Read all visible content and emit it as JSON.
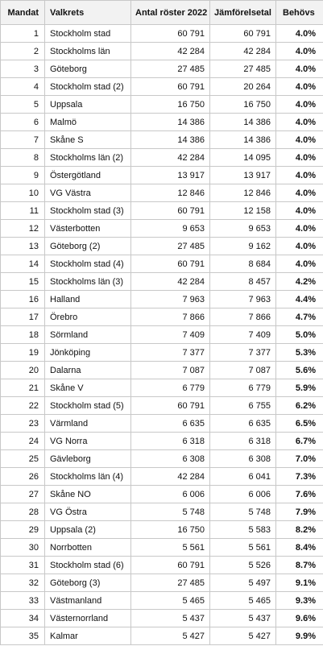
{
  "table": {
    "headers": [
      "Mandat",
      "Valkrets",
      "Antal röster 2022",
      "Jämförelsetal",
      "Behövs"
    ],
    "rows": [
      [
        "1",
        "Stockholm stad",
        "60 791",
        "60 791",
        "4.0%"
      ],
      [
        "2",
        "Stockholms län",
        "42 284",
        "42 284",
        "4.0%"
      ],
      [
        "3",
        "Göteborg",
        "27 485",
        "27 485",
        "4.0%"
      ],
      [
        "4",
        "Stockholm stad (2)",
        "60 791",
        "20 264",
        "4.0%"
      ],
      [
        "5",
        "Uppsala",
        "16 750",
        "16 750",
        "4.0%"
      ],
      [
        "6",
        "Malmö",
        "14 386",
        "14 386",
        "4.0%"
      ],
      [
        "7",
        "Skåne S",
        "14 386",
        "14 386",
        "4.0%"
      ],
      [
        "8",
        "Stockholms län (2)",
        "42 284",
        "14 095",
        "4.0%"
      ],
      [
        "9",
        "Östergötland",
        "13 917",
        "13 917",
        "4.0%"
      ],
      [
        "10",
        "VG Västra",
        "12 846",
        "12 846",
        "4.0%"
      ],
      [
        "11",
        "Stockholm stad (3)",
        "60 791",
        "12 158",
        "4.0%"
      ],
      [
        "12",
        "Västerbotten",
        "9 653",
        "9 653",
        "4.0%"
      ],
      [
        "13",
        "Göteborg (2)",
        "27 485",
        "9 162",
        "4.0%"
      ],
      [
        "14",
        "Stockholm stad (4)",
        "60 791",
        "8 684",
        "4.0%"
      ],
      [
        "15",
        "Stockholms län (3)",
        "42 284",
        "8 457",
        "4.2%"
      ],
      [
        "16",
        "Halland",
        "7 963",
        "7 963",
        "4.4%"
      ],
      [
        "17",
        "Örebro",
        "7 866",
        "7 866",
        "4.7%"
      ],
      [
        "18",
        "Sörmland",
        "7 409",
        "7 409",
        "5.0%"
      ],
      [
        "19",
        "Jönköping",
        "7 377",
        "7 377",
        "5.3%"
      ],
      [
        "20",
        "Dalarna",
        "7 087",
        "7 087",
        "5.6%"
      ],
      [
        "21",
        "Skåne V",
        "6 779",
        "6 779",
        "5.9%"
      ],
      [
        "22",
        "Stockholm stad (5)",
        "60 791",
        "6 755",
        "6.2%"
      ],
      [
        "23",
        "Värmland",
        "6 635",
        "6 635",
        "6.5%"
      ],
      [
        "24",
        "VG Norra",
        "6 318",
        "6 318",
        "6.7%"
      ],
      [
        "25",
        "Gävleborg",
        "6 308",
        "6 308",
        "7.0%"
      ],
      [
        "26",
        "Stockholms län (4)",
        "42 284",
        "6 041",
        "7.3%"
      ],
      [
        "27",
        "Skåne NO",
        "6 006",
        "6 006",
        "7.6%"
      ],
      [
        "28",
        "VG Östra",
        "5 748",
        "5 748",
        "7.9%"
      ],
      [
        "29",
        "Uppsala (2)",
        "16 750",
        "5 583",
        "8.2%"
      ],
      [
        "30",
        "Norrbotten",
        "5 561",
        "5 561",
        "8.4%"
      ],
      [
        "31",
        "Stockholm stad (6)",
        "60 791",
        "5 526",
        "8.7%"
      ],
      [
        "32",
        "Göteborg (3)",
        "27 485",
        "5 497",
        "9.1%"
      ],
      [
        "33",
        "Västmanland",
        "5 465",
        "5 465",
        "9.3%"
      ],
      [
        "34",
        "Västernorrland",
        "5 437",
        "5 437",
        "9.6%"
      ],
      [
        "35",
        "Kalmar",
        "5 427",
        "5 427",
        "9.9%"
      ]
    ]
  }
}
